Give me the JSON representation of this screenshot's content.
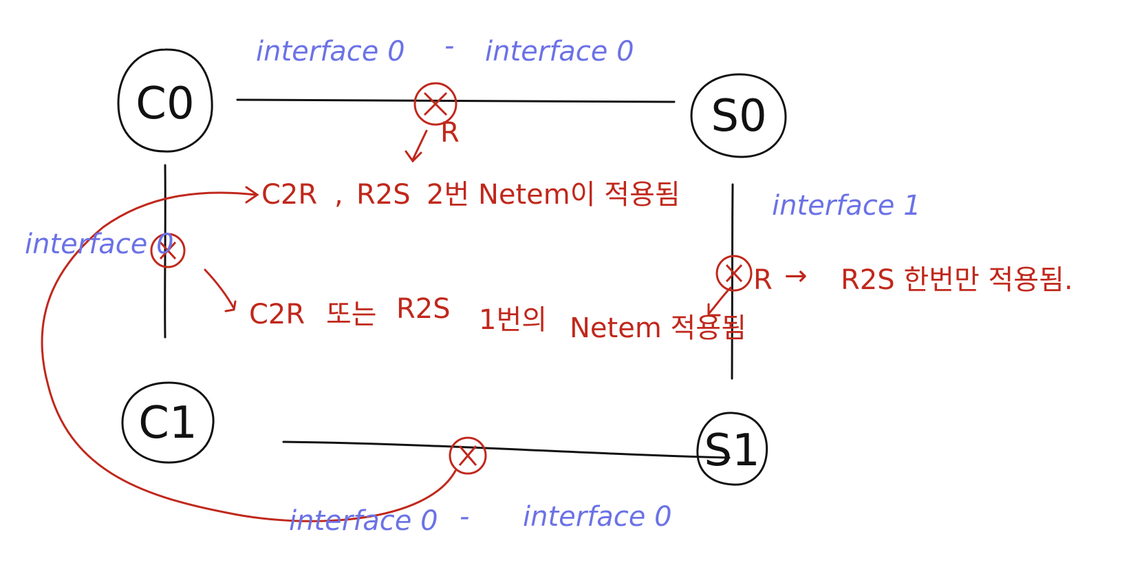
{
  "colors": {
    "ink": "#111111",
    "blue": "#6b72e6",
    "red": "#c0281c",
    "background": "#ffffff"
  },
  "nodes": {
    "c0": "C0",
    "s0": "S0",
    "c1": "C1",
    "s1": "S1"
  },
  "interfaces": {
    "top_left": "interface 0",
    "top_dash": "-",
    "top_right": "interface 0",
    "right": "interface 1",
    "left": "interface 0",
    "bottom_left": "interface 0",
    "bottom_dash": "-",
    "bottom_right": "interface 0"
  },
  "marks": {
    "top_r": "R",
    "right_r": "R"
  },
  "notes": {
    "top_prefix": "C2R",
    "top_comma": ",",
    "top_middle": "R2S",
    "top_suffix": "2번 Netem이 적용됨",
    "middle_a": "C2R",
    "middle_b": "또는",
    "middle_c": "R2S",
    "middle_d": "1번의",
    "middle_e": "Netem 적용됨",
    "right_arrow": "→",
    "right_text": "R2S 한번만 적용됨."
  }
}
